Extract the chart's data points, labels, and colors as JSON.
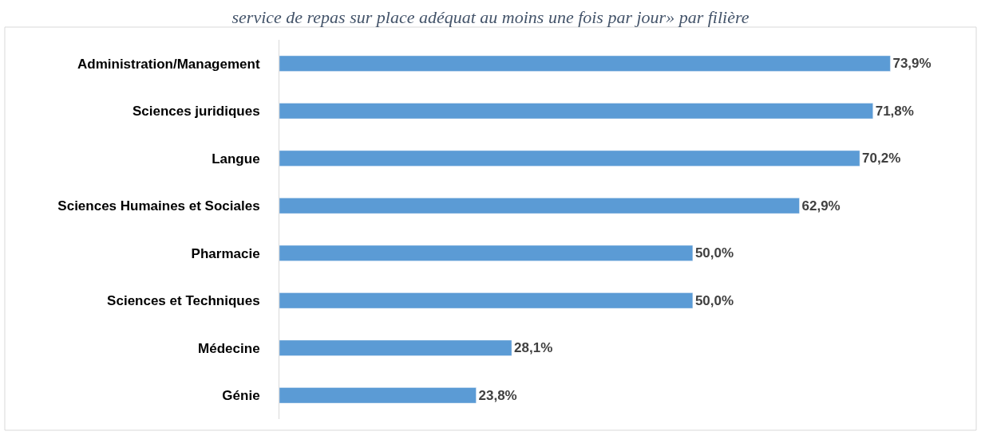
{
  "chart_data": {
    "type": "bar",
    "orientation": "horizontal",
    "title": "service de repas sur place adéquat au moins une fois par jour» par filière",
    "categories": [
      "Administration/Management",
      "Sciences juridiques",
      "Langue",
      "Sciences Humaines et Sociales",
      "Pharmacie",
      "Sciences et Techniques",
      "Médecine",
      "Génie"
    ],
    "values": [
      73.9,
      71.8,
      70.2,
      62.9,
      50.0,
      50.0,
      28.1,
      23.8
    ],
    "value_labels": [
      "73,9%",
      "71,8%",
      "70,2%",
      "62,9%",
      "50,0%",
      "50,0%",
      "28,1%",
      "23,8%"
    ],
    "color": "#5b9bd5"
  }
}
